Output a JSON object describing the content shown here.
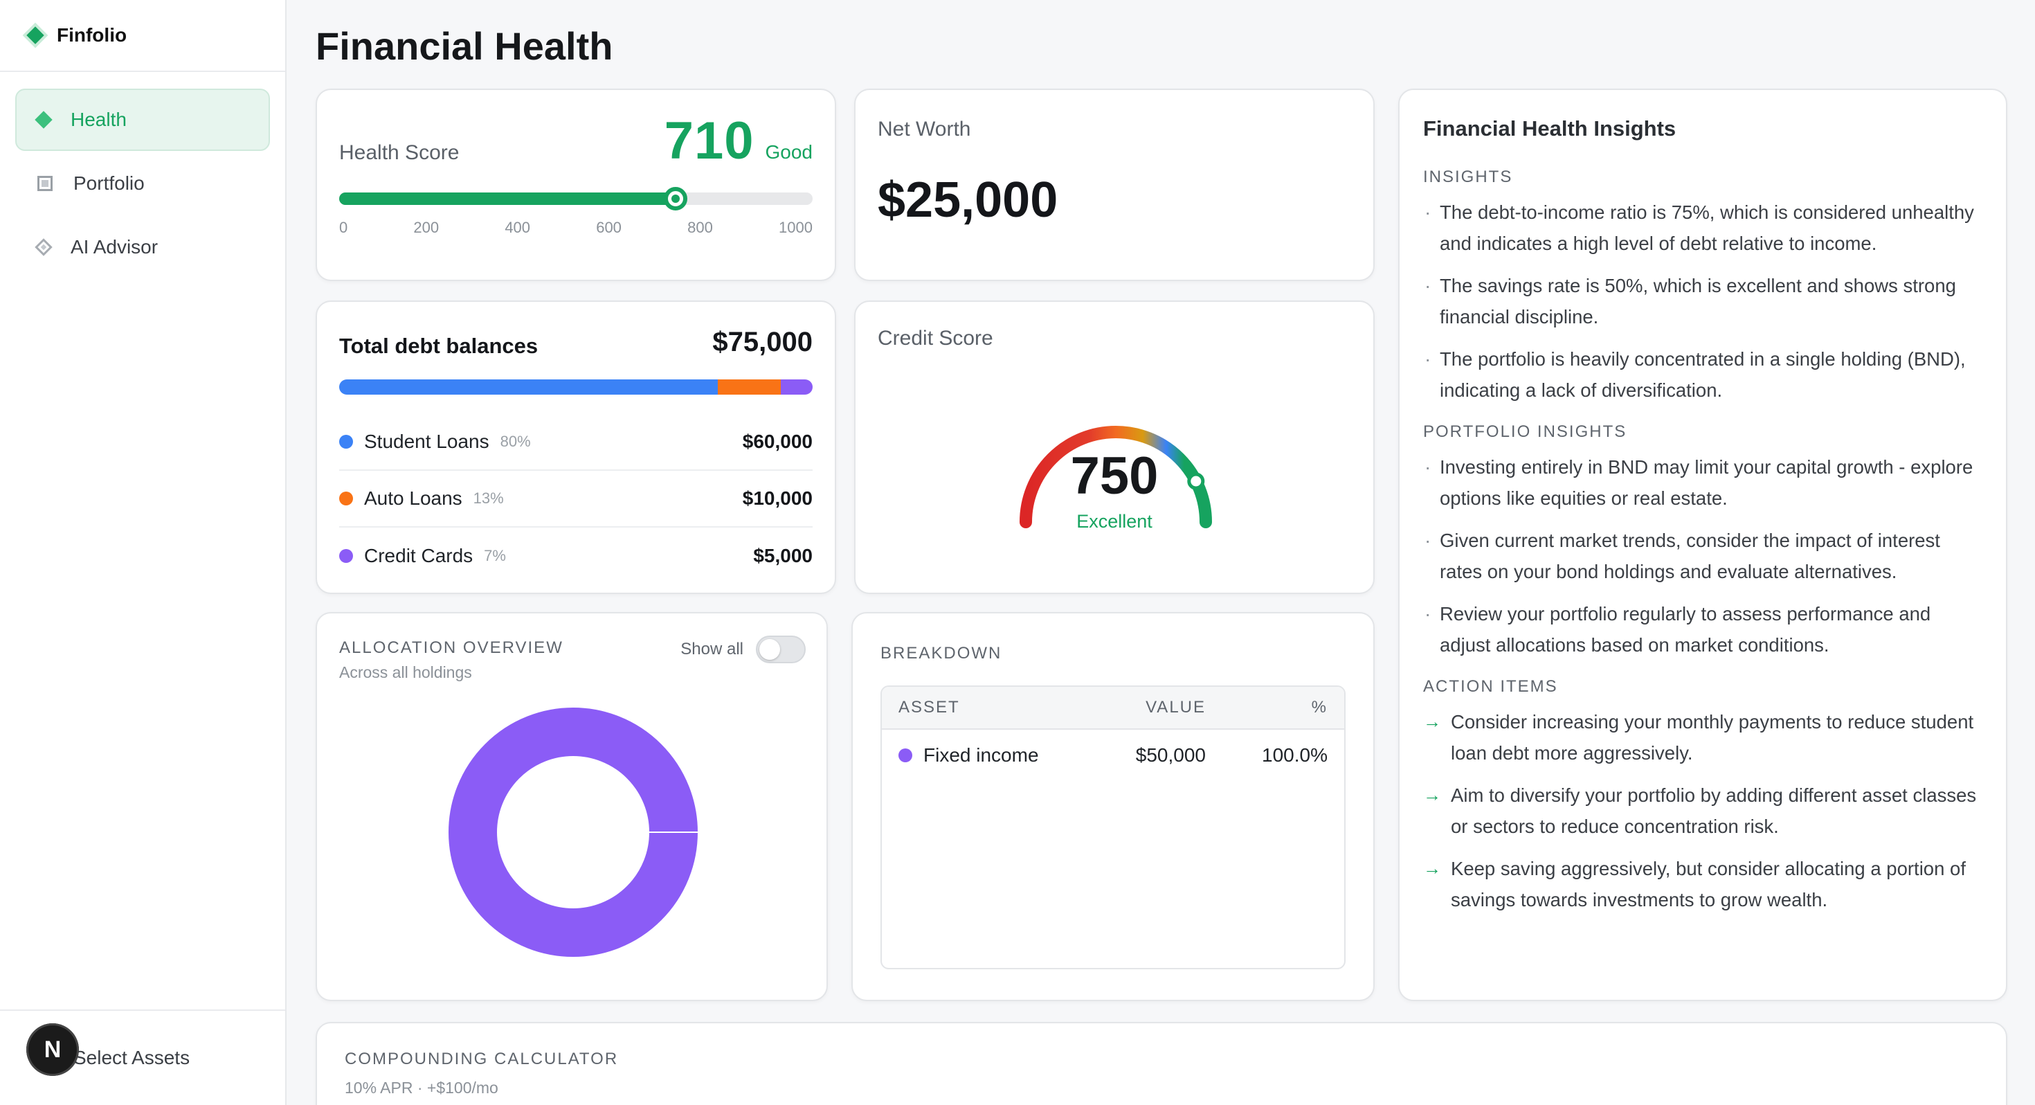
{
  "app": {
    "name": "Finfolio"
  },
  "sidebar": {
    "items": [
      {
        "label": "Health",
        "icon": "diamond-filled-icon",
        "active": true
      },
      {
        "label": "Portfolio",
        "icon": "square-icon",
        "active": false
      },
      {
        "label": "AI Advisor",
        "icon": "diamond-outline-icon",
        "active": false
      }
    ],
    "footer": {
      "label": "Select Assets",
      "avatar_letter": "N"
    }
  },
  "page": {
    "title": "Financial Health"
  },
  "health_score": {
    "label": "Health Score",
    "score": "710",
    "grade": "Good",
    "progress_fraction": 0.71,
    "ticks": [
      "0",
      "200",
      "400",
      "600",
      "800",
      "1000"
    ]
  },
  "net_worth": {
    "label": "Net Worth",
    "amount": "$25,000"
  },
  "debt": {
    "title": "Total debt balances",
    "total": "$75,000",
    "items": [
      {
        "name": "Student Loans",
        "pct": "80%",
        "amount": "$60,000",
        "share": 0.8,
        "color": "#3b82f6"
      },
      {
        "name": "Auto Loans",
        "pct": "13%",
        "amount": "$10,000",
        "share": 0.133,
        "color": "#f97316"
      },
      {
        "name": "Credit Cards",
        "pct": "7%",
        "amount": "$5,000",
        "share": 0.067,
        "color": "#8b5cf6"
      }
    ]
  },
  "credit_score": {
    "label": "Credit Score",
    "score": "750",
    "rating": "Excellent",
    "fraction": 0.85
  },
  "allocation": {
    "title": "ALLOCATION OVERVIEW",
    "subtitle": "Across all holdings",
    "toggle_label": "Show all",
    "toggle_on": false,
    "chart_data": {
      "type": "pie",
      "categories": [
        "Fixed income"
      ],
      "values": [
        100.0
      ],
      "colors": [
        "#8b5cf6"
      ]
    }
  },
  "breakdown": {
    "title": "BREAKDOWN",
    "columns": [
      "ASSET",
      "VALUE",
      "%"
    ],
    "rows": [
      {
        "asset": "Fixed income",
        "value": "$50,000",
        "pct": "100.0%",
        "color": "#8b5cf6"
      }
    ]
  },
  "insights": {
    "title": "Financial Health Insights",
    "sections": [
      {
        "heading": "INSIGHTS",
        "items": [
          "The debt-to-income ratio is 75%, which is considered unhealthy and indicates a high level of debt relative to income.",
          "The savings rate is 50%, which is excellent and shows strong financial discipline.",
          "The portfolio is heavily concentrated in a single holding (BND), indicating a lack of diversification."
        ]
      },
      {
        "heading": "PORTFOLIO INSIGHTS",
        "items": [
          "Investing entirely in BND may limit your capital growth - explore options like equities or real estate.",
          "Given current market trends, consider the impact of interest rates on your bond holdings and evaluate alternatives.",
          "Review your portfolio regularly to assess performance and adjust allocations based on market conditions."
        ]
      }
    ],
    "actions": {
      "heading": "ACTION ITEMS",
      "items": [
        "Consider increasing your monthly payments to reduce student loan debt more aggressively.",
        "Aim to diversify your portfolio by adding different asset classes or sectors to reduce concentration risk.",
        "Keep saving aggressively, but consider allocating a portion of savings towards investments to grow wealth."
      ]
    }
  },
  "compounding": {
    "title": "COMPOUNDING CALCULATOR",
    "subtitle": "10% APR · +$100/mo"
  },
  "colors": {
    "accent": "#16a35f",
    "purple": "#8b5cf6",
    "blue": "#3b82f6",
    "orange": "#f97316"
  }
}
